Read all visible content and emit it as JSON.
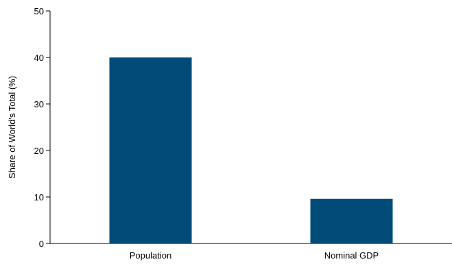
{
  "chart_data": {
    "type": "bar",
    "categories": [
      "Population",
      "Nominal GDP"
    ],
    "values": [
      40,
      9.6
    ],
    "title": "",
    "xlabel": "",
    "ylabel": "Share of World's Total (%)",
    "ylim": [
      0,
      50
    ],
    "yticks": [
      0,
      10,
      20,
      30,
      40,
      50
    ],
    "grid": false,
    "bar_color": "#004b78"
  }
}
